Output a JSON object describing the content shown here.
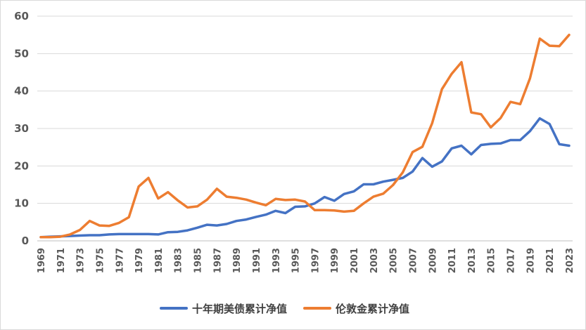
{
  "chart_data": {
    "type": "line",
    "title": "",
    "xlabel": "",
    "ylabel": "",
    "ylim": [
      0,
      60
    ],
    "yticks": [
      0,
      10,
      20,
      30,
      40,
      50,
      60
    ],
    "grid": true,
    "legend_position": "bottom",
    "x": [
      1969,
      1970,
      1971,
      1972,
      1973,
      1974,
      1975,
      1976,
      1977,
      1978,
      1979,
      1980,
      1981,
      1982,
      1983,
      1984,
      1985,
      1986,
      1987,
      1988,
      1989,
      1990,
      1991,
      1992,
      1993,
      1994,
      1995,
      1996,
      1997,
      1998,
      1999,
      2000,
      2001,
      2002,
      2003,
      2004,
      2005,
      2006,
      2007,
      2008,
      2009,
      2010,
      2011,
      2012,
      2013,
      2014,
      2015,
      2016,
      2017,
      2018,
      2019,
      2020,
      2021,
      2022,
      2023
    ],
    "xtick_labels": [
      "1969",
      "1971",
      "1973",
      "1975",
      "1977",
      "1979",
      "1981",
      "1983",
      "1985",
      "1987",
      "1989",
      "1991",
      "1993",
      "1995",
      "1997",
      "1999",
      "2001",
      "2003",
      "2005",
      "2007",
      "2009",
      "2011",
      "2013",
      "2015",
      "2017",
      "2019",
      "2021",
      "2023"
    ],
    "series": [
      {
        "name": "十年期美债累计净值",
        "color": "#4472c4",
        "values": [
          1.0,
          1.1,
          1.2,
          1.3,
          1.4,
          1.5,
          1.5,
          1.7,
          1.8,
          1.8,
          1.8,
          1.8,
          1.7,
          2.3,
          2.4,
          2.8,
          3.5,
          4.3,
          4.1,
          4.5,
          5.3,
          5.7,
          6.4,
          7.0,
          8.0,
          7.4,
          9.1,
          9.2,
          10.0,
          11.7,
          10.7,
          12.5,
          13.2,
          15.1,
          15.1,
          15.8,
          16.3,
          16.8,
          18.5,
          22.1,
          19.8,
          21.2,
          24.7,
          25.4,
          23.1,
          25.6,
          25.9,
          26.0,
          26.9,
          26.9,
          29.3,
          32.7,
          31.2,
          25.8,
          25.4
        ]
      },
      {
        "name": "伦敦金累计净值",
        "color": "#ed7d31",
        "values": [
          1.0,
          1.0,
          1.1,
          1.7,
          2.9,
          5.3,
          4.1,
          4.0,
          4.8,
          6.3,
          14.5,
          16.8,
          11.3,
          13.0,
          10.8,
          8.9,
          9.2,
          11.0,
          13.9,
          11.8,
          11.5,
          11.0,
          10.2,
          9.5,
          11.2,
          10.9,
          11.0,
          10.5,
          8.2,
          8.2,
          8.1,
          7.8,
          8.0,
          10.0,
          11.8,
          12.6,
          14.9,
          18.3,
          23.7,
          25.1,
          31.4,
          40.5,
          44.6,
          47.7,
          34.3,
          33.8,
          30.3,
          32.8,
          37.1,
          36.5,
          43.4,
          54.0,
          52.1,
          52.0,
          55.0
        ]
      }
    ]
  }
}
